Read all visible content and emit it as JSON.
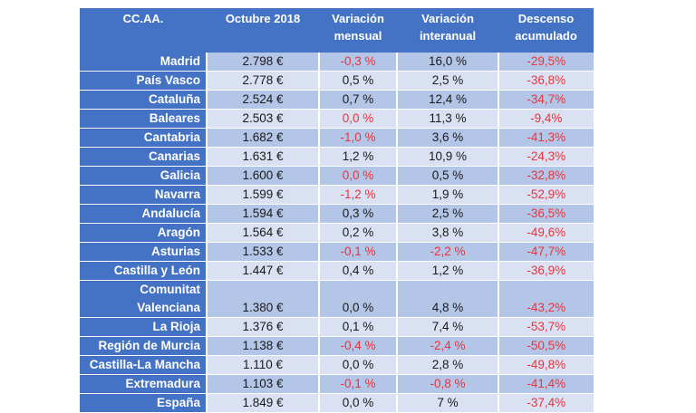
{
  "table": {
    "headers": [
      [
        "CC.AA."
      ],
      [
        "Octubre 2018"
      ],
      [
        "Variación",
        "mensual"
      ],
      [
        "Variación",
        "interanual"
      ],
      [
        "Descenso",
        "acumulado"
      ]
    ],
    "colors": {
      "header_bg": "#4472c4",
      "row_dark": "#b4c6e7",
      "row_light": "#d9e1f2",
      "negative_text": "#e8343c",
      "header_text": "#ffffff"
    },
    "rows": [
      {
        "region": "Madrid",
        "octubre_2018": "2.798 €",
        "var_mensual": "-0,3 %",
        "var_interanual": "16,0 %",
        "descenso": "-29,5%"
      },
      {
        "region": "País Vasco",
        "octubre_2018": "2.778 €",
        "var_mensual": "0,5 %",
        "var_interanual": "2,5 %",
        "descenso": "-36,8%"
      },
      {
        "region": "Cataluña",
        "octubre_2018": "2.524 €",
        "var_mensual": "0,7 %",
        "var_interanual": "12,4 %",
        "descenso": "-34,7%"
      },
      {
        "region": "Baleares",
        "octubre_2018": "2.503 €",
        "var_mensual": "0,0 %",
        "var_interanual": "11,3 %",
        "descenso": "-9,4%"
      },
      {
        "region": "Cantabria",
        "octubre_2018": "1.682 €",
        "var_mensual": "-1,0 %",
        "var_interanual": "3,6 %",
        "descenso": "-41,3%"
      },
      {
        "region": "Canarias",
        "octubre_2018": "1.631 €",
        "var_mensual": "1,2 %",
        "var_interanual": "10,9 %",
        "descenso": "-24,3%"
      },
      {
        "region": "Galicia",
        "octubre_2018": "1.600 €",
        "var_mensual": "0,0 %",
        "var_interanual": "0,5 %",
        "descenso": "-32,8%"
      },
      {
        "region": "Navarra",
        "octubre_2018": "1.599 €",
        "var_mensual": "-1,2 %",
        "var_interanual": "1,9 %",
        "descenso": "-52,9%"
      },
      {
        "region": "Andalucía",
        "octubre_2018": "1.594 €",
        "var_mensual": "0,3 %",
        "var_interanual": "2,5 %",
        "descenso": "-36,5%"
      },
      {
        "region": "Aragón",
        "octubre_2018": "1.564 €",
        "var_mensual": "0,2 %",
        "var_interanual": "3,8 %",
        "descenso": "-49,6%"
      },
      {
        "region": "Asturias",
        "octubre_2018": "1.533 €",
        "var_mensual": "-0,1 %",
        "var_interanual": "-2,2 %",
        "descenso": "-47,7%"
      },
      {
        "region": "Castilla y León",
        "octubre_2018": "1.447 €",
        "var_mensual": "0,4 %",
        "var_interanual": "1,2 %",
        "descenso": "-36,9%"
      },
      {
        "region": "Comunitat Valenciana",
        "region_lines": [
          "Comunitat",
          "Valenciana"
        ],
        "octubre_2018": "1.380 €",
        "var_mensual": "0,0 %",
        "var_interanual": "4,8 %",
        "descenso": "-43,2%"
      },
      {
        "region": "La Rioja",
        "octubre_2018": "1.376 €",
        "var_mensual": "0,1 %",
        "var_interanual": "7,4 %",
        "descenso": "-53,7%"
      },
      {
        "region": "Región de Murcia",
        "octubre_2018": "1.138 €",
        "var_mensual": "-0,4 %",
        "var_interanual": "-2,4 %",
        "descenso": "-50,5%"
      },
      {
        "region": "Castilla-La Mancha",
        "octubre_2018": "1.110 €",
        "var_mensual": "0,0 %",
        "var_interanual": "2,8 %",
        "descenso": "-49,8%"
      },
      {
        "region": "Extremadura",
        "octubre_2018": "1.103 €",
        "var_mensual": "-0,1 %",
        "var_interanual": "-0,8 %",
        "descenso": "-41,4%"
      },
      {
        "region": "España",
        "octubre_2018": "1.849 €",
        "var_mensual": "0,0 %",
        "var_interanual": "7 %",
        "descenso": "-37,4%"
      }
    ],
    "red_cells": {
      "var_mensual": [
        0,
        3,
        4,
        6,
        7,
        10,
        14,
        16
      ],
      "var_interanual": [
        10,
        14,
        16
      ],
      "descenso": [
        0,
        1,
        2,
        3,
        4,
        5,
        6,
        7,
        8,
        9,
        10,
        11,
        12,
        13,
        14,
        15,
        16,
        17
      ]
    }
  }
}
